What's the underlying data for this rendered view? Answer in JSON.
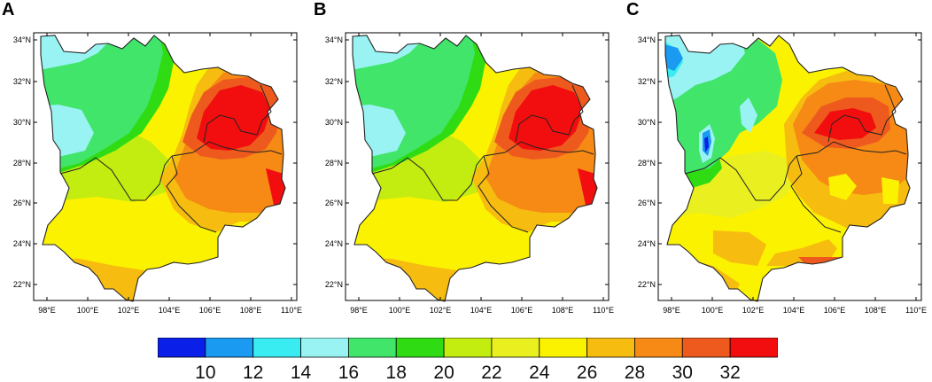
{
  "panels": [
    {
      "id": "A",
      "letter": "A"
    },
    {
      "id": "B",
      "letter": "B"
    },
    {
      "id": "C",
      "letter": "C"
    }
  ],
  "axes": {
    "lat_labels": [
      "34°N",
      "32°N",
      "30°N",
      "28°N",
      "26°N",
      "24°N",
      "22°N"
    ],
    "lon_labels": [
      "98°E",
      "100°E",
      "102°E",
      "104°E",
      "106°E",
      "108°E",
      "110°E"
    ]
  },
  "colorbar": {
    "tick_labels": [
      "10",
      "12",
      "14",
      "16",
      "18",
      "20",
      "22",
      "24",
      "26",
      "28",
      "30",
      "32"
    ],
    "colors": [
      "#0a1fe8",
      "#1a9af0",
      "#38ecf2",
      "#9af3f3",
      "#41e56a",
      "#2fdc14",
      "#c3ec10",
      "#eaf020",
      "#fbf200",
      "#f6bc10",
      "#f68a14",
      "#ee5a1e",
      "#f20e0e"
    ]
  }
}
